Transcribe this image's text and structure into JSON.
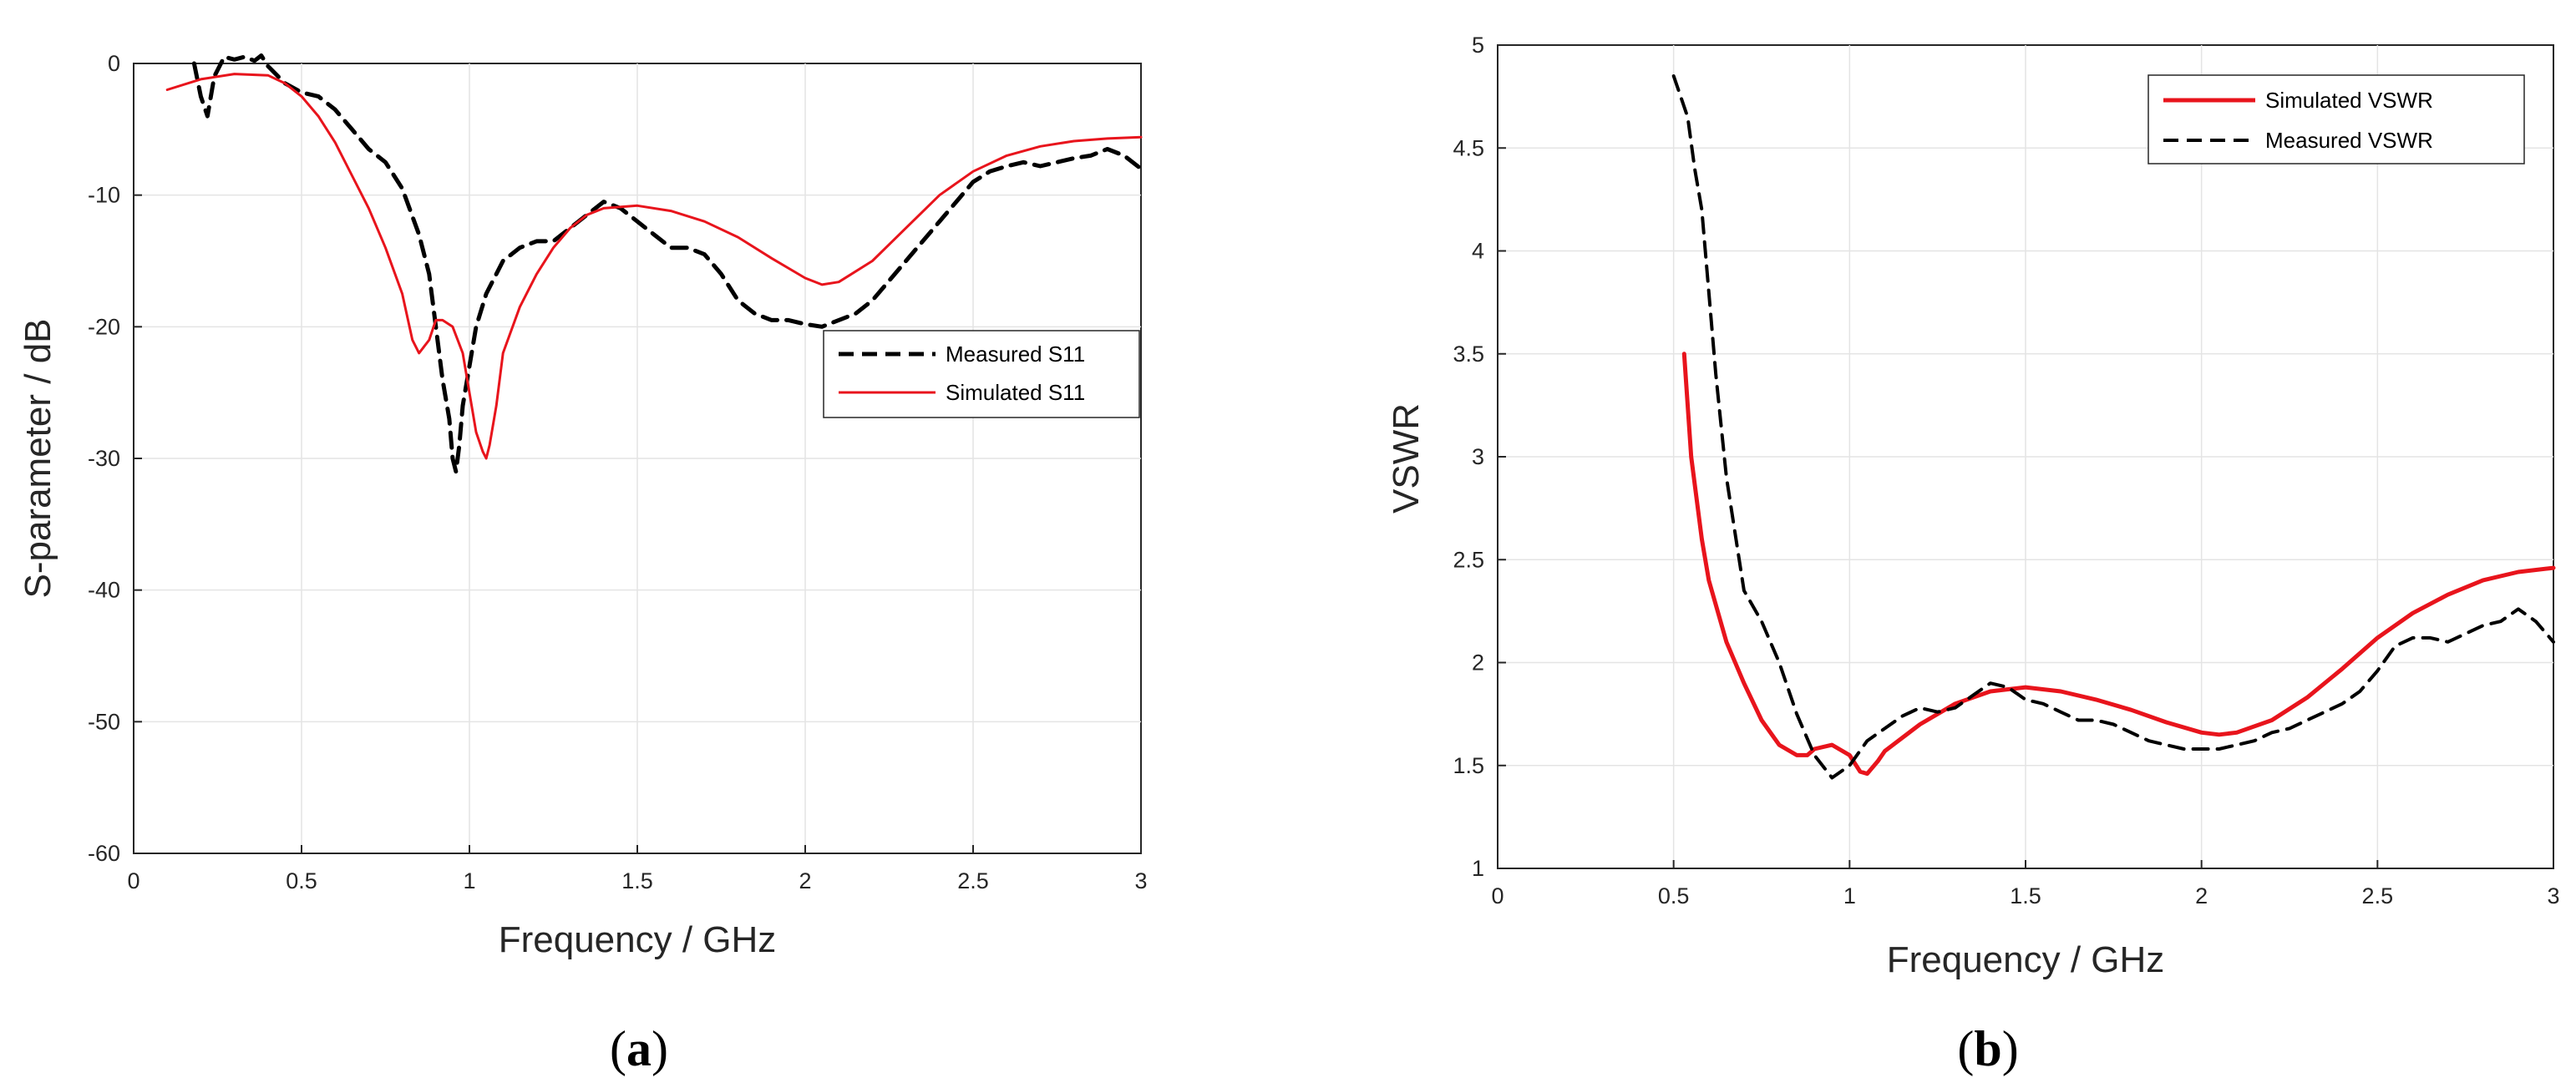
{
  "chart_data": [
    {
      "type": "line",
      "panel_label": "(a)",
      "panel_letter": "a",
      "xlabel": "Frequency / GHz",
      "ylabel": "S-parameter / dB",
      "xlim": [
        0,
        3
      ],
      "ylim": [
        -60,
        0
      ],
      "xticks": [
        0,
        0.5,
        1,
        1.5,
        2,
        2.5,
        3
      ],
      "yticks": [
        -60,
        -50,
        -40,
        -30,
        -20,
        -10,
        0
      ],
      "grid": true,
      "legend_position": "right",
      "colors": {
        "measured": "#000000",
        "simulated": "#e8141c"
      },
      "series": [
        {
          "name": "Measured S11",
          "style": "dashed",
          "x": [
            0.18,
            0.2,
            0.22,
            0.24,
            0.27,
            0.3,
            0.33,
            0.36,
            0.38,
            0.4,
            0.45,
            0.5,
            0.55,
            0.6,
            0.65,
            0.7,
            0.75,
            0.8,
            0.85,
            0.88,
            0.9,
            0.92,
            0.94,
            0.95,
            0.96,
            0.97,
            0.98,
            1.0,
            1.02,
            1.05,
            1.1,
            1.15,
            1.2,
            1.25,
            1.3,
            1.35,
            1.4,
            1.45,
            1.5,
            1.55,
            1.6,
            1.65,
            1.7,
            1.75,
            1.8,
            1.85,
            1.9,
            1.95,
            2.0,
            2.05,
            2.1,
            2.15,
            2.2,
            2.25,
            2.3,
            2.35,
            2.4,
            2.45,
            2.5,
            2.55,
            2.6,
            2.65,
            2.7,
            2.75,
            2.8,
            2.85,
            2.9,
            2.95,
            3.0
          ],
          "y": [
            0,
            -2.5,
            -4,
            -1,
            0.5,
            0.3,
            0.5,
            0.2,
            0.6,
            -0.2,
            -1.5,
            -2.2,
            -2.5,
            -3.5,
            -5,
            -6.5,
            -7.5,
            -9.5,
            -13,
            -16,
            -20,
            -24,
            -27,
            -30,
            -31,
            -29,
            -26,
            -23,
            -20,
            -17.5,
            -15,
            -14,
            -13.5,
            -13.5,
            -12.5,
            -11.5,
            -10.5,
            -11,
            -12,
            -13,
            -14,
            -14,
            -14.5,
            -16,
            -18,
            -19,
            -19.5,
            -19.5,
            -19.8,
            -20,
            -19.5,
            -19,
            -18,
            -16.5,
            -15,
            -13.5,
            -12,
            -10.5,
            -9,
            -8.2,
            -7.8,
            -7.5,
            -7.8,
            -7.5,
            -7.2,
            -7,
            -6.5,
            -7,
            -8
          ]
        },
        {
          "name": "Simulated S11",
          "style": "solid",
          "x": [
            0.1,
            0.2,
            0.3,
            0.4,
            0.45,
            0.5,
            0.55,
            0.6,
            0.65,
            0.7,
            0.75,
            0.8,
            0.83,
            0.85,
            0.88,
            0.9,
            0.92,
            0.95,
            0.98,
            1.0,
            1.02,
            1.04,
            1.05,
            1.06,
            1.08,
            1.1,
            1.15,
            1.2,
            1.25,
            1.3,
            1.35,
            1.4,
            1.5,
            1.6,
            1.7,
            1.8,
            1.9,
            2.0,
            2.05,
            2.1,
            2.2,
            2.3,
            2.4,
            2.5,
            2.6,
            2.7,
            2.8,
            2.9,
            3.0
          ],
          "y": [
            -2,
            -1.2,
            -0.8,
            -0.9,
            -1.5,
            -2.5,
            -4,
            -6,
            -8.5,
            -11,
            -14,
            -17.5,
            -21,
            -22,
            -21,
            -19.5,
            -19.5,
            -20,
            -22,
            -25,
            -28,
            -29.5,
            -30,
            -29,
            -26,
            -22,
            -18.5,
            -16,
            -14,
            -12.5,
            -11.5,
            -11,
            -10.8,
            -11.2,
            -12,
            -13.2,
            -14.8,
            -16.3,
            -16.8,
            -16.6,
            -15,
            -12.5,
            -10,
            -8.2,
            -7,
            -6.3,
            -5.9,
            -5.7,
            -5.6
          ]
        }
      ]
    },
    {
      "type": "line",
      "panel_label": "(b)",
      "panel_letter": "b",
      "xlabel": "Frequency / GHz",
      "ylabel": "VSWR",
      "xlim": [
        0,
        3
      ],
      "ylim": [
        1,
        5
      ],
      "xticks": [
        0,
        0.5,
        1,
        1.5,
        2,
        2.5,
        3
      ],
      "yticks": [
        1,
        1.5,
        2,
        2.5,
        3,
        3.5,
        4,
        4.5,
        5
      ],
      "grid": true,
      "legend_position": "top-right",
      "colors": {
        "measured": "#000000",
        "simulated": "#e8141c"
      },
      "series": [
        {
          "name": "Simulated VSWR",
          "style": "solid",
          "x": [
            0.53,
            0.55,
            0.58,
            0.6,
            0.65,
            0.7,
            0.75,
            0.8,
            0.85,
            0.88,
            0.9,
            0.95,
            1.0,
            1.03,
            1.05,
            1.08,
            1.1,
            1.2,
            1.3,
            1.4,
            1.5,
            1.6,
            1.7,
            1.8,
            1.9,
            2.0,
            2.05,
            2.1,
            2.2,
            2.3,
            2.4,
            2.5,
            2.6,
            2.7,
            2.8,
            2.9,
            3.0
          ],
          "y": [
            3.5,
            3.0,
            2.6,
            2.4,
            2.1,
            1.9,
            1.72,
            1.6,
            1.55,
            1.55,
            1.58,
            1.6,
            1.55,
            1.47,
            1.46,
            1.52,
            1.57,
            1.7,
            1.8,
            1.86,
            1.88,
            1.86,
            1.82,
            1.77,
            1.71,
            1.66,
            1.65,
            1.66,
            1.72,
            1.83,
            1.97,
            2.12,
            2.24,
            2.33,
            2.4,
            2.44,
            2.46
          ]
        },
        {
          "name": "Measured VSWR",
          "style": "dashed",
          "x": [
            0.5,
            0.52,
            0.54,
            0.56,
            0.58,
            0.6,
            0.62,
            0.65,
            0.7,
            0.75,
            0.8,
            0.85,
            0.9,
            0.95,
            1.0,
            1.05,
            1.1,
            1.15,
            1.2,
            1.25,
            1.3,
            1.35,
            1.4,
            1.45,
            1.5,
            1.55,
            1.6,
            1.65,
            1.7,
            1.75,
            1.8,
            1.85,
            1.9,
            1.95,
            2.0,
            2.05,
            2.1,
            2.15,
            2.2,
            2.25,
            2.3,
            2.35,
            2.4,
            2.45,
            2.5,
            2.55,
            2.6,
            2.65,
            2.7,
            2.75,
            2.8,
            2.85,
            2.9,
            2.95,
            3.0
          ],
          "y": [
            4.85,
            4.75,
            4.65,
            4.4,
            4.2,
            3.8,
            3.4,
            2.9,
            2.35,
            2.2,
            2.0,
            1.75,
            1.55,
            1.44,
            1.5,
            1.62,
            1.68,
            1.74,
            1.78,
            1.76,
            1.78,
            1.84,
            1.9,
            1.88,
            1.82,
            1.8,
            1.76,
            1.72,
            1.72,
            1.7,
            1.66,
            1.62,
            1.6,
            1.58,
            1.58,
            1.58,
            1.6,
            1.62,
            1.66,
            1.68,
            1.72,
            1.76,
            1.8,
            1.86,
            1.96,
            2.08,
            2.12,
            2.12,
            2.1,
            2.14,
            2.18,
            2.2,
            2.26,
            2.2,
            2.1
          ]
        }
      ]
    }
  ]
}
